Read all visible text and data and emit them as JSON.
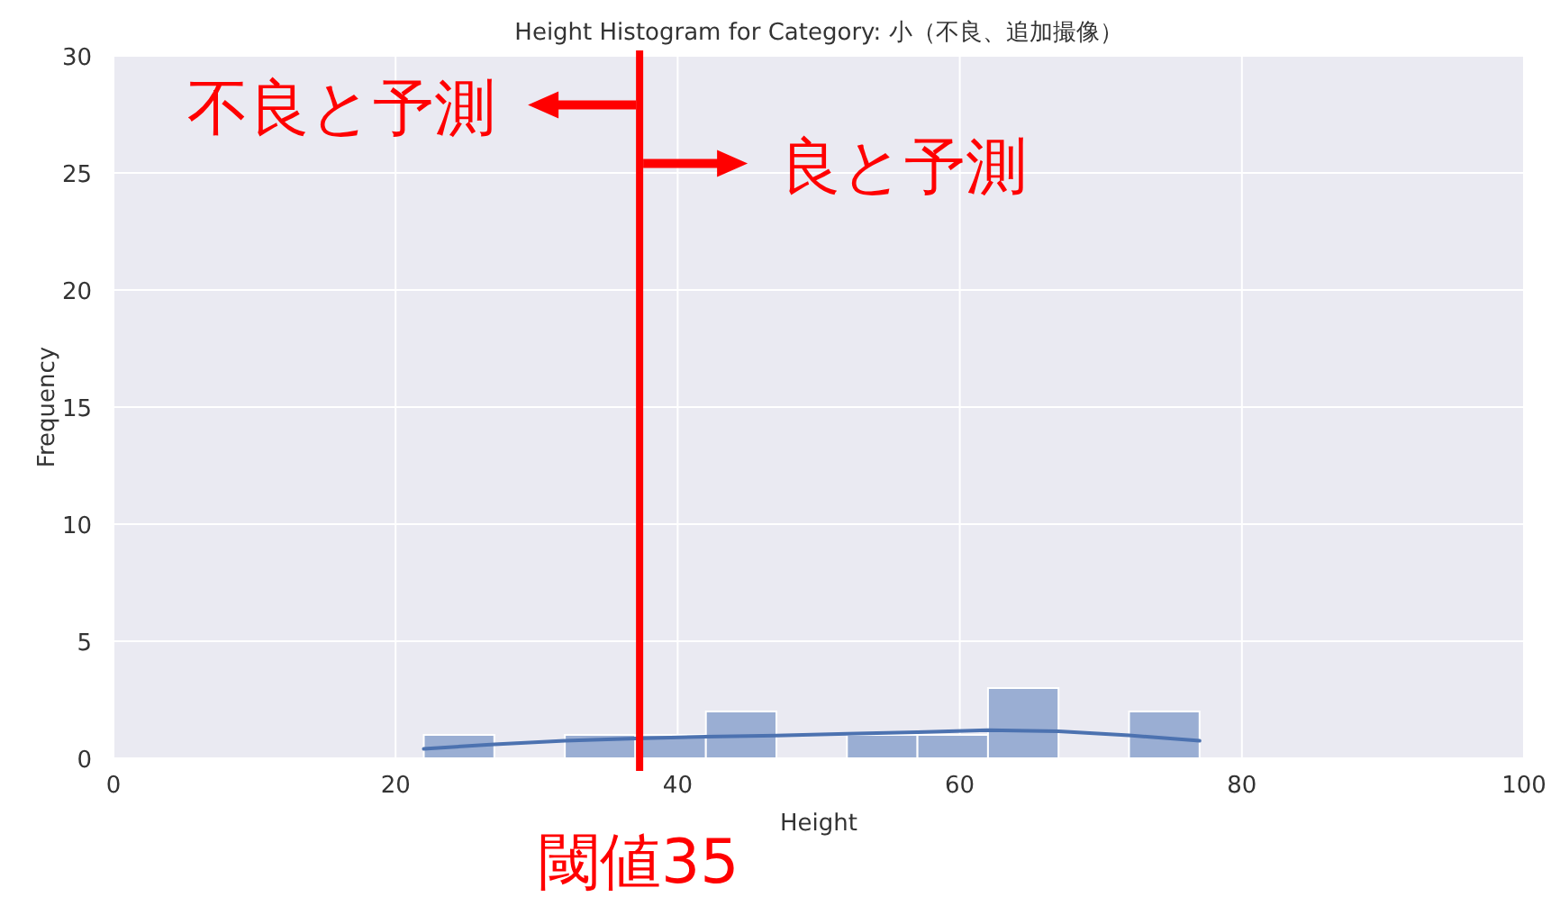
{
  "chart_data": {
    "type": "histogram",
    "title": "Height Histogram for Category: 小（不良、追加撮像）",
    "xlabel": "Height",
    "ylabel": "Frequency",
    "series": [
      {
        "color": "#9aaed3",
        "bins": [
          22,
          27,
          32,
          37,
          42,
          47,
          52,
          57,
          62,
          67,
          72,
          77
        ],
        "values": [
          1,
          0,
          1,
          1,
          2,
          0,
          1,
          1,
          3,
          0,
          2
        ]
      },
      {
        "type": "line",
        "color": "#4c72b0",
        "x": [
          22,
          27,
          32,
          37,
          42,
          47,
          52,
          57,
          62,
          67,
          72,
          77
        ],
        "values": [
          0.4,
          0.6,
          0.75,
          0.85,
          0.92,
          0.97,
          1.05,
          1.12,
          1.2,
          1.15,
          0.98,
          0.75
        ]
      }
    ],
    "xlim": [
      0,
      100
    ],
    "xticks": [
      0,
      20,
      40,
      60,
      80,
      100
    ],
    "ylim": [
      0,
      30
    ],
    "yticks": [
      0,
      5,
      10,
      15,
      20,
      25,
      30
    ],
    "grid": true,
    "ref_lines": [
      {
        "axis": "x",
        "value": 37.3,
        "label": "閾値35",
        "color": "#ff0000"
      }
    ],
    "annotations": [
      {
        "text": "不良と予測",
        "x": 37.3,
        "y": 27.9
      },
      {
        "text": "良と予測",
        "x": 37.3,
        "y": 25.4
      }
    ]
  }
}
